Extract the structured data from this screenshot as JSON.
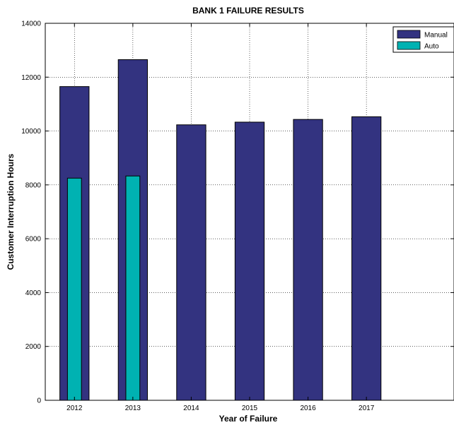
{
  "chart_data": {
    "type": "bar",
    "title": "BANK 1 FAILURE RESULTS",
    "xlabel": "Year of Failure",
    "ylabel": "Customer Interruption Hours",
    "categories": [
      "2012",
      "2013",
      "2014",
      "2015",
      "2016",
      "2017"
    ],
    "series": [
      {
        "name": "Manual",
        "color": "#333380",
        "values": [
          11650,
          12650,
          10230,
          10330,
          10430,
          10530
        ]
      },
      {
        "name": "Auto",
        "color": "#00B2B2",
        "values": [
          8250,
          8330,
          null,
          null,
          null,
          null
        ]
      }
    ],
    "ylim": [
      0,
      14000
    ],
    "yticks": [
      0,
      2000,
      4000,
      6000,
      8000,
      10000,
      12000,
      14000
    ],
    "xlim": [
      0.5,
      7.5
    ],
    "grid": true,
    "legend_position": "top-right"
  }
}
